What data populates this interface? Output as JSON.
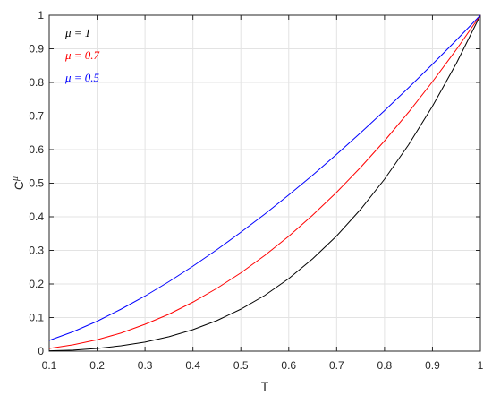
{
  "chart_data": {
    "type": "line",
    "xlabel": "T",
    "ylabel": "C",
    "ylabel_sup": "μ",
    "x": [
      0.1,
      0.15,
      0.2,
      0.25,
      0.3,
      0.35,
      0.4,
      0.45,
      0.5,
      0.55,
      0.6,
      0.65,
      0.7,
      0.75,
      0.8,
      0.85,
      0.9,
      0.95,
      1
    ],
    "series": [
      {
        "name": "μ = 1",
        "color": "#000000",
        "values": [
          0.001,
          0.003,
          0.008,
          0.016,
          0.027,
          0.043,
          0.064,
          0.091,
          0.125,
          0.166,
          0.216,
          0.275,
          0.343,
          0.422,
          0.512,
          0.614,
          0.729,
          0.857,
          1
        ]
      },
      {
        "name": "μ = 0.7",
        "color": "#ff0000",
        "values": [
          0.008,
          0.019,
          0.034,
          0.054,
          0.08,
          0.11,
          0.146,
          0.187,
          0.233,
          0.285,
          0.342,
          0.405,
          0.473,
          0.547,
          0.626,
          0.711,
          0.802,
          0.898,
          1
        ]
      },
      {
        "name": "μ = 0.5",
        "color": "#0000ff",
        "values": [
          0.032,
          0.058,
          0.089,
          0.125,
          0.164,
          0.207,
          0.253,
          0.302,
          0.354,
          0.408,
          0.465,
          0.524,
          0.586,
          0.65,
          0.716,
          0.784,
          0.854,
          0.926,
          1
        ]
      }
    ],
    "xlim": [
      0.1,
      1
    ],
    "xticks": [
      0.1,
      0.2,
      0.3,
      0.4,
      0.5,
      0.6,
      0.7,
      0.8,
      0.9,
      1
    ],
    "ylim": [
      0,
      1
    ],
    "yticks": [
      0,
      0.1,
      0.2,
      0.3,
      0.4,
      0.5,
      0.6,
      0.7,
      0.8,
      0.9,
      1
    ],
    "grid": true,
    "legend": "upper-left"
  }
}
